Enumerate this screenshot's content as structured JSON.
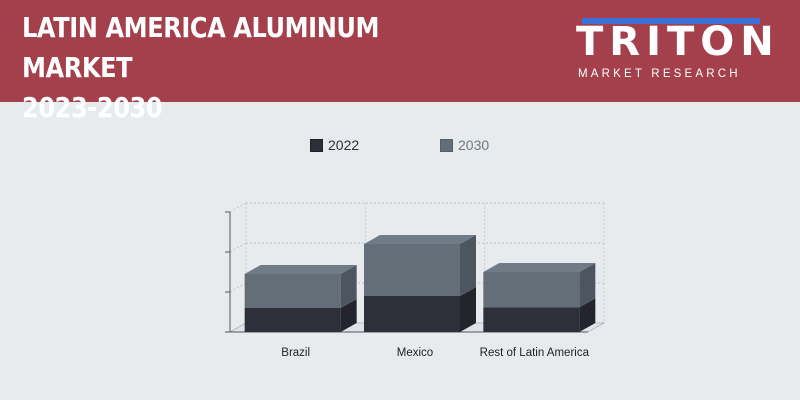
{
  "header": {
    "title_line1": "LATIN AMERICA ALUMINUM MARKET",
    "title_line2": "2023-2030"
  },
  "logo": {
    "word": "TRITON",
    "subtitle": "MARKET RESEARCH"
  },
  "colors": {
    "banner": "#a3404b",
    "background": "#e7ebee",
    "series_2022": "#2e3039",
    "series_2030": "#636e78",
    "logo_accent": "#3c6fd8"
  },
  "chart_data": {
    "type": "bar",
    "stacked": true,
    "three_d": true,
    "categories": [
      "Brazil",
      "Mexico",
      "Rest of Latin America"
    ],
    "series": [
      {
        "name": "2022",
        "values": [
          0.6,
          0.9,
          0.62
        ]
      },
      {
        "name": "2030",
        "values": [
          0.85,
          1.3,
          0.88
        ]
      }
    ],
    "ylim": [
      0,
      3
    ],
    "y_ticks_labeled": false,
    "grid": true,
    "legend": "top-center"
  }
}
